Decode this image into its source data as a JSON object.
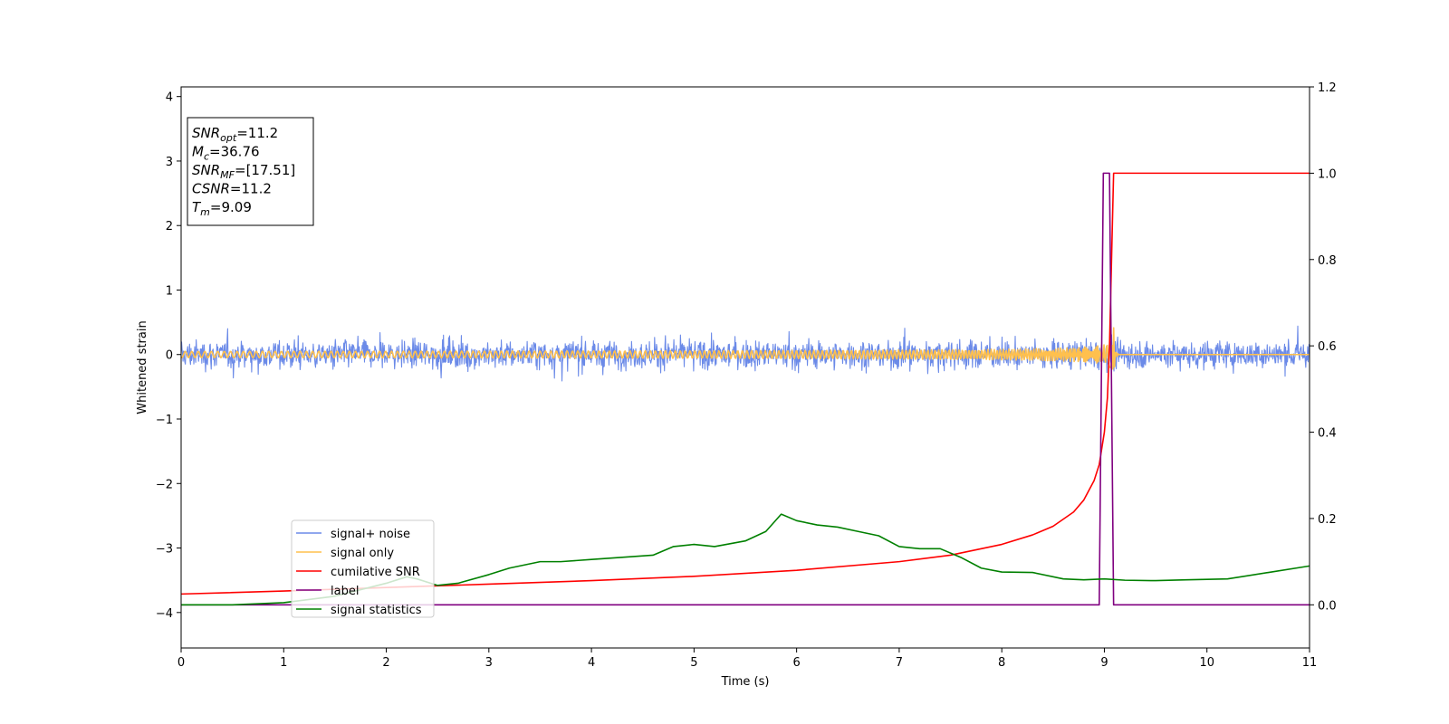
{
  "chart_data": {
    "type": "line",
    "xlabel": "Time (s)",
    "ylabel": "Whitened strain",
    "xlim": [
      0,
      11
    ],
    "ylim_left": [
      -4.55,
      4.15
    ],
    "ylim_right": [
      -0.1,
      1.2
    ],
    "x_ticks": [
      "0",
      "1",
      "2",
      "3",
      "4",
      "5",
      "6",
      "7",
      "8",
      "9",
      "10",
      "11"
    ],
    "y_ticks_left": [
      "−4",
      "−3",
      "−2",
      "−1",
      "0",
      "1",
      "2",
      "3",
      "4"
    ],
    "y_ticks_right": [
      "0.0",
      "0.2",
      "0.4",
      "0.6",
      "0.8",
      "1.0",
      "1.2"
    ],
    "legend_position": "lower-left",
    "annotation": {
      "lines": [
        {
          "sym": "SNR",
          "sub": "opt",
          "value": "=11.2"
        },
        {
          "sym": "M",
          "sub": "c",
          "value": "=36.76"
        },
        {
          "sym": "SNR",
          "sub": "MF",
          "value": "=[17.51]"
        },
        {
          "sym": "CSNR",
          "sub": "",
          "value": "=11.2"
        },
        {
          "sym": "T",
          "sub": "m",
          "value": "=9.09"
        }
      ]
    },
    "series": [
      {
        "name": "signal+ noise",
        "color": "#6b8ae8",
        "axis": "left",
        "kind": "noise",
        "amplitude": 0.3,
        "range": [
          0,
          11
        ]
      },
      {
        "name": "signal only",
        "color": "#ffc04d",
        "axis": "left",
        "kind": "chirp",
        "merger_time": 9.09,
        "peak_amplitude": 0.45
      },
      {
        "name": "cumilative SNR",
        "color": "#ff0000",
        "axis": "right",
        "x": [
          0,
          1,
          2,
          3,
          4,
          5,
          6,
          7,
          7.5,
          8,
          8.3,
          8.5,
          8.7,
          8.8,
          8.9,
          8.95,
          9.0,
          9.03,
          9.05,
          9.07,
          9.09,
          11
        ],
        "y": [
          0.025,
          0.032,
          0.04,
          0.048,
          0.056,
          0.066,
          0.08,
          0.1,
          0.115,
          0.14,
          0.162,
          0.182,
          0.215,
          0.243,
          0.288,
          0.325,
          0.4,
          0.48,
          0.6,
          0.8,
          1.0,
          1.0
        ]
      },
      {
        "name": "label",
        "color": "#800080",
        "axis": "right",
        "x": [
          0,
          8.95,
          8.99,
          9.05,
          9.09,
          11
        ],
        "y": [
          0,
          0,
          1,
          1,
          0,
          0
        ]
      },
      {
        "name": "signal statistics",
        "color": "#008000",
        "axis": "right",
        "x": [
          0,
          0.5,
          1.0,
          1.5,
          2.0,
          2.2,
          2.3,
          2.5,
          2.7,
          3.0,
          3.2,
          3.5,
          3.7,
          4.0,
          4.3,
          4.6,
          4.8,
          5.0,
          5.2,
          5.5,
          5.7,
          5.85,
          6.0,
          6.2,
          6.4,
          6.6,
          6.8,
          7.0,
          7.2,
          7.4,
          7.6,
          7.8,
          8.0,
          8.3,
          8.6,
          8.8,
          9.0,
          9.2,
          9.5,
          9.8,
          10.2,
          10.6,
          11.0
        ],
        "y": [
          0.0,
          0.0,
          0.005,
          0.02,
          0.05,
          0.065,
          0.06,
          0.045,
          0.05,
          0.07,
          0.085,
          0.1,
          0.1,
          0.105,
          0.11,
          0.115,
          0.135,
          0.14,
          0.135,
          0.148,
          0.17,
          0.21,
          0.195,
          0.185,
          0.18,
          0.17,
          0.16,
          0.135,
          0.13,
          0.13,
          0.11,
          0.085,
          0.076,
          0.075,
          0.06,
          0.058,
          0.06,
          0.057,
          0.056,
          0.058,
          0.06,
          0.075,
          0.09
        ]
      }
    ]
  }
}
